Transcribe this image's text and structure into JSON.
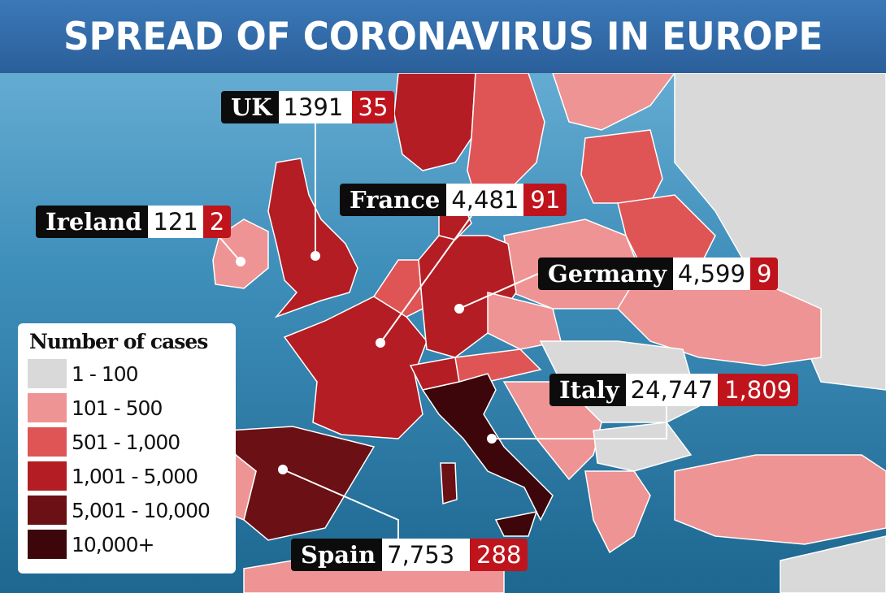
{
  "title": "SPREAD OF CORONAVIRUS IN EUROPE",
  "legend": {
    "title": "Number of cases",
    "items": [
      {
        "label": "1 - 100",
        "color": "#d9d9d9"
      },
      {
        "label": "101 - 500",
        "color": "#ee9494"
      },
      {
        "label": "501 - 1,000",
        "color": "#df5556"
      },
      {
        "label": "1,001 - 5,000",
        "color": "#b41d23"
      },
      {
        "label": "5,001 - 10,000",
        "color": "#6b1015"
      },
      {
        "label": "10,000+",
        "color": "#3c060a"
      }
    ]
  },
  "countries": [
    {
      "name": "UK",
      "cases": "1391",
      "deaths": "35"
    },
    {
      "name": "France",
      "cases": "4,481",
      "deaths": "91"
    },
    {
      "name": "Ireland",
      "cases": "121",
      "deaths": "2"
    },
    {
      "name": "Germany",
      "cases": "4,599",
      "deaths": "9"
    },
    {
      "name": "Italy",
      "cases": "24,747",
      "deaths": "1,809"
    },
    {
      "name": "Spain",
      "cases": "7,753",
      "deaths": "288"
    }
  ]
}
